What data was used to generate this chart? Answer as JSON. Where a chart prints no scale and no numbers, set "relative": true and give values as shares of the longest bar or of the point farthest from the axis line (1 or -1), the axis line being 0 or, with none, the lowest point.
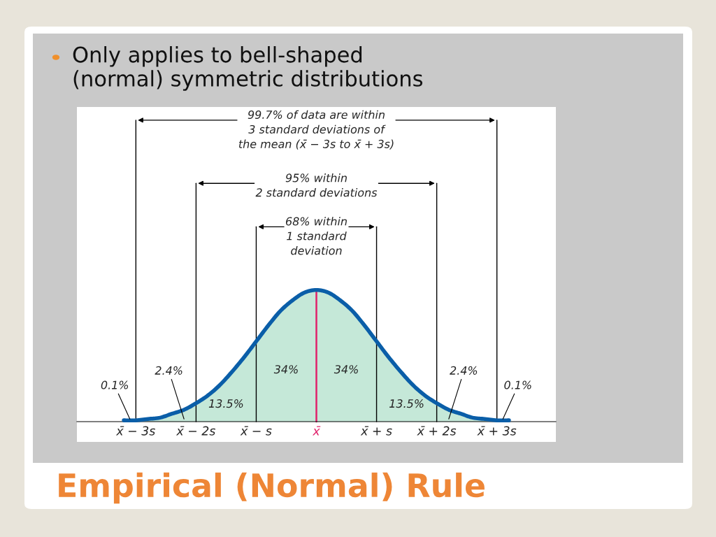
{
  "chart_data": {
    "type": "area",
    "title": "Empirical (Normal) Rule",
    "subtitle": "Only applies to bell-shaped\n(normal) symmetric distributions",
    "relative": true,
    "x": [
      -3.2,
      -3.0,
      -2.8,
      -2.6,
      -2.4,
      -2.2,
      -2.0,
      -1.8,
      -1.6,
      -1.4,
      -1.2,
      -1.0,
      -0.8,
      -0.6,
      -0.4,
      -0.2,
      0,
      0.2,
      0.4,
      0.6,
      0.8,
      1.0,
      1.2,
      1.4,
      1.6,
      1.8,
      2.0,
      2.2,
      2.4,
      2.6,
      2.8,
      3.0,
      3.2
    ],
    "series": [
      {
        "color": "#0a5ea8",
        "values": [
          0.01,
          0.01,
          0.02,
          0.03,
          0.06,
          0.09,
          0.14,
          0.2,
          0.28,
          0.38,
          0.49,
          0.61,
          0.73,
          0.84,
          0.92,
          0.98,
          1,
          0.98,
          0.92,
          0.84,
          0.73,
          0.61,
          0.49,
          0.38,
          0.28,
          0.2,
          0.14,
          0.09,
          0.06,
          0.03,
          0.02,
          0.01,
          0.01
        ]
      }
    ],
    "xlim": [
      -3.98,
      3.98
    ],
    "xticks": [
      {
        "value": -3,
        "label": "x̄ − 3s"
      },
      {
        "value": -2,
        "label": "x̄ − 2s"
      },
      {
        "value": -1,
        "label": "x̄ − s"
      },
      {
        "value": 0,
        "label": "x̄"
      },
      {
        "value": 1,
        "label": "x̄ + s"
      },
      {
        "value": 2,
        "label": "x̄ + 2s"
      },
      {
        "value": 3,
        "label": "x̄ + 3s"
      }
    ],
    "ref_lines": [
      {
        "axis": "x",
        "value": -3
      },
      {
        "axis": "x",
        "value": -2
      },
      {
        "axis": "x",
        "value": -1
      },
      {
        "axis": "x",
        "value": 0,
        "color": "#e0206a"
      },
      {
        "axis": "x",
        "value": 1
      },
      {
        "axis": "x",
        "value": 2
      },
      {
        "axis": "x",
        "value": 3
      }
    ],
    "annotations": [
      "99.7% of data are within\n3 standard deviations of\nthe mean (x̄ − 3s to x̄ + 3s)",
      "95% within\n2 standard deviations",
      "68% within\n1 standard\ndeviation",
      "34%",
      "34%",
      "13.5%",
      "13.5%",
      "2.4%",
      "2.4%",
      "0.1%",
      "0.1%"
    ],
    "grid": false,
    "legend": false
  }
}
